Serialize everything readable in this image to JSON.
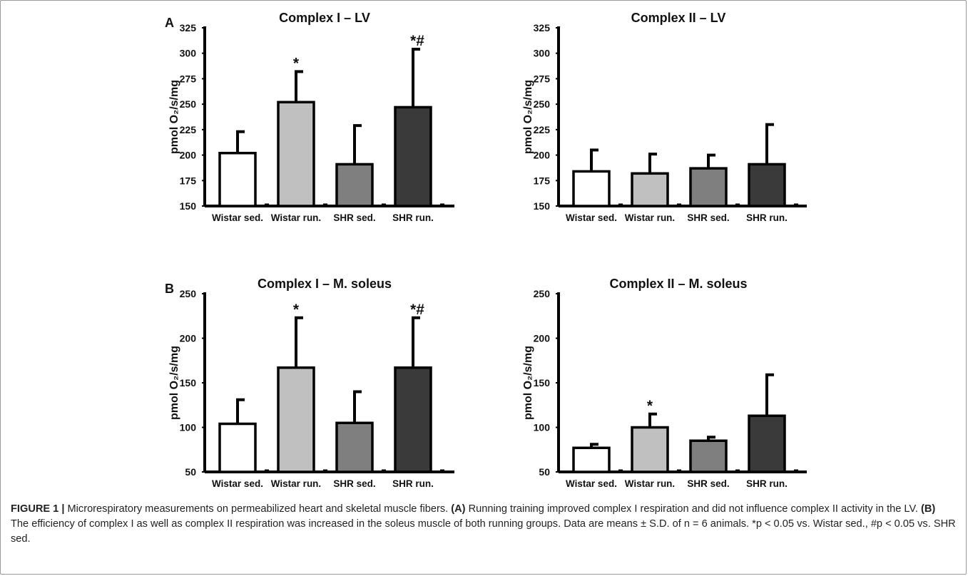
{
  "chart_data": [
    {
      "panel": "A",
      "type": "bar",
      "title": "Complex I – LV",
      "ylabel": "pmol O₂/s/mg",
      "ylim": [
        150,
        325
      ],
      "yticks": [
        150,
        175,
        200,
        225,
        250,
        275,
        300,
        325
      ],
      "categories": [
        "Wistar sed.",
        "Wistar run.",
        "SHR sed.",
        "SHR run."
      ],
      "values": [
        202,
        252,
        191,
        247
      ],
      "errors": [
        21,
        30,
        38,
        57
      ],
      "annotations": [
        "",
        "*",
        "",
        "*#"
      ],
      "colors": [
        "#ffffff",
        "#c0c0c0",
        "#7f7f7f",
        "#3a3a3a"
      ]
    },
    {
      "panel": "",
      "type": "bar",
      "title": "Complex II – LV",
      "ylabel": "pmol O₂/s/mg",
      "ylim": [
        150,
        325
      ],
      "yticks": [
        150,
        175,
        200,
        225,
        250,
        275,
        300,
        325
      ],
      "categories": [
        "Wistar sed.",
        "Wistar run.",
        "SHR sed.",
        "SHR run."
      ],
      "values": [
        184,
        182,
        187,
        191
      ],
      "errors": [
        21,
        19,
        13,
        39
      ],
      "annotations": [
        "",
        "",
        "",
        ""
      ],
      "colors": [
        "#ffffff",
        "#c0c0c0",
        "#7f7f7f",
        "#3a3a3a"
      ]
    },
    {
      "panel": "B",
      "type": "bar",
      "title": "Complex I – M. soleus",
      "ylabel": "pmol O₂/s/mg",
      "ylim": [
        50,
        250
      ],
      "yticks": [
        50,
        100,
        150,
        200,
        250
      ],
      "categories": [
        "Wistar sed.",
        "Wistar run.",
        "SHR sed.",
        "SHR run."
      ],
      "values": [
        104,
        167,
        105,
        167
      ],
      "errors": [
        27,
        56,
        35,
        56
      ],
      "annotations": [
        "",
        "*",
        "",
        "*#"
      ],
      "colors": [
        "#ffffff",
        "#c0c0c0",
        "#7f7f7f",
        "#3a3a3a"
      ]
    },
    {
      "panel": "",
      "type": "bar",
      "title": "Complex II – M. soleus",
      "ylabel": "pmol O₂/s/mg",
      "ylim": [
        50,
        250
      ],
      "yticks": [
        50,
        100,
        150,
        200,
        250
      ],
      "categories": [
        "Wistar sed.",
        "Wistar run.",
        "SHR sed.",
        "SHR run."
      ],
      "values": [
        77,
        100,
        85,
        113
      ],
      "errors": [
        4,
        15,
        4,
        46
      ],
      "annotations": [
        "",
        "*",
        "",
        ""
      ],
      "colors": [
        "#ffffff",
        "#c0c0c0",
        "#7f7f7f",
        "#3a3a3a"
      ]
    }
  ],
  "caption": {
    "label": "FIGURE 1 |",
    "intro": " Microrespiratory measurements on permeabilized heart and skeletal muscle fibers. ",
    "a_label": "(A)",
    "a_text": " Running training improved complex I respiration and did not influence complex II activity in the LV. ",
    "b_label": "(B)",
    "b_text": " The efficiency of complex I as well as complex II respiration was increased in the soleus muscle of both running groups. Data are means ± S.D. of n = 6 animals. *p < 0.05 vs. Wistar sed., #p < 0.05 vs. SHR sed."
  }
}
